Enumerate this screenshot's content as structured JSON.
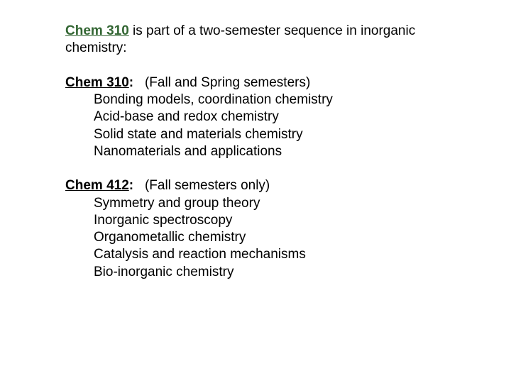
{
  "intro": {
    "title": "Chem 310",
    "rest": " is part of a two-semester sequence in inorganic chemistry:"
  },
  "courses": [
    {
      "name": "Chem 310",
      "colon": ":",
      "when": "   (Fall and Spring semesters)",
      "topics": [
        "Bonding models, coordination chemistry",
        "Acid-base and redox chemistry",
        "Solid state and materials chemistry",
        "Nanomaterials and applications"
      ]
    },
    {
      "name": "Chem 412",
      "colon": ":",
      "when": "   (Fall semesters only)",
      "topics": [
        "Symmetry and group theory",
        "Inorganic spectroscopy",
        "Organometallic chemistry",
        "Catalysis and reaction mechanisms",
        "Bio-inorganic chemistry"
      ]
    }
  ],
  "colors": {
    "title_green": "#336633",
    "text_black": "#000000",
    "background": "#ffffff"
  },
  "typography": {
    "font_family": "Arial",
    "font_size_pt": 14
  }
}
